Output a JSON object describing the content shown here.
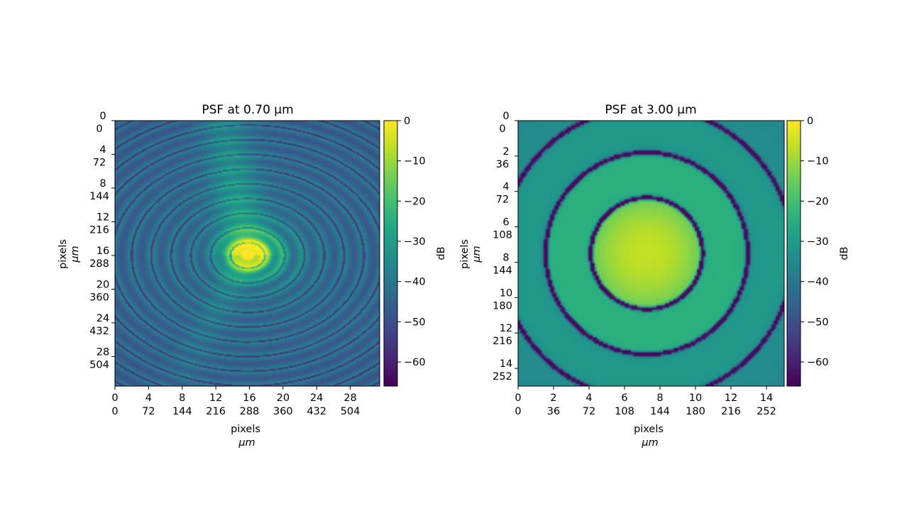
{
  "chart_data": [
    {
      "type": "heatmap",
      "title": "PSF at 0.70 μm",
      "x_ticks": {
        "pixels": [
          "0",
          "4",
          "8",
          "12",
          "16",
          "20",
          "24",
          "28"
        ],
        "um": [
          "0",
          "72",
          "144",
          "216",
          "288",
          "360",
          "432",
          "504"
        ]
      },
      "y_ticks": {
        "pixels": [
          "0",
          "4",
          "8",
          "12",
          "16",
          "20",
          "24",
          "28"
        ],
        "um": [
          "0",
          "72",
          "144",
          "216",
          "288",
          "360",
          "432",
          "504"
        ]
      },
      "xlabel": [
        "pixels",
        "μm"
      ],
      "ylabel": [
        "pixels",
        "μm"
      ],
      "xlim": [
        0,
        31.5
      ],
      "ylim": [
        31.5,
        0
      ],
      "pixel_size_um": 18,
      "peak": {
        "x": 15.8,
        "y": 16
      },
      "colorbar": {
        "label": "dB",
        "ticks": [
          "0",
          "−10",
          "−20",
          "−30",
          "−40",
          "−50",
          "−60"
        ],
        "range": [
          -66,
          0
        ],
        "colormap": "viridis"
      }
    },
    {
      "type": "heatmap",
      "title": "PSF at 3.00 μm",
      "x_ticks": {
        "pixels": [
          "0",
          "2",
          "4",
          "6",
          "8",
          "10",
          "12",
          "14"
        ],
        "um": [
          "0",
          "36",
          "72",
          "108",
          "144",
          "180",
          "216",
          "252"
        ]
      },
      "y_ticks": {
        "pixels": [
          "0",
          "2",
          "4",
          "6",
          "8",
          "10",
          "12",
          "14"
        ],
        "um": [
          "0",
          "36",
          "72",
          "108",
          "144",
          "180",
          "216",
          "252"
        ]
      },
      "xlabel": [
        "pixels",
        "μm"
      ],
      "ylabel": [
        "pixels",
        "μm"
      ],
      "xlim": [
        0,
        15
      ],
      "ylim": [
        15,
        0
      ],
      "pixel_size_um": 18,
      "peak": {
        "x": 7.25,
        "y": 7.5
      },
      "dark_ring_radii_px": [
        3.15,
        5.7,
        8.25
      ],
      "colorbar": {
        "label": "dB",
        "ticks": [
          "0",
          "−10",
          "−20",
          "−30",
          "−40",
          "−50",
          "−60"
        ],
        "range": [
          -66,
          0
        ],
        "colormap": "viridis"
      }
    }
  ]
}
